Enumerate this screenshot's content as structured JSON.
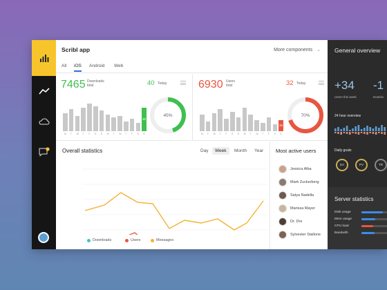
{
  "app": {
    "title": "Scribl app",
    "more_label": "More components"
  },
  "tabs": [
    {
      "label": "All"
    },
    {
      "label": "iOS"
    },
    {
      "label": "Android"
    },
    {
      "label": "Web"
    }
  ],
  "downloads": {
    "total": "7465",
    "total_label_1": "Downloads",
    "total_label_2": "total",
    "today": "40",
    "today_label": "Today",
    "bar_tag": "40",
    "percent": "45%",
    "percent_value": 0.45,
    "days": [
      "M",
      "T",
      "W",
      "T",
      "F",
      "S",
      "S",
      "M",
      "T",
      "W",
      "T",
      "F",
      "S",
      "S"
    ],
    "color": "#3fbf4f"
  },
  "users": {
    "total": "6930",
    "total_label_1": "Users",
    "total_label_2": "total",
    "today": "32",
    "today_label": "Today",
    "bar_tag": "32",
    "percent": "70%",
    "percent_value": 0.7,
    "days": [
      "M",
      "T",
      "W",
      "T",
      "F",
      "S",
      "S",
      "M",
      "T",
      "W",
      "T",
      "F",
      "S",
      "S"
    ],
    "color": "#e8563f"
  },
  "overall": {
    "title": "Overall statistics",
    "ranges": [
      {
        "label": "Day"
      },
      {
        "label": "Week"
      },
      {
        "label": "Month"
      },
      {
        "label": "Year"
      }
    ],
    "legend": [
      {
        "label": "Downloads",
        "color": "#3cc6c0"
      },
      {
        "label": "Users",
        "color": "#e8563f"
      },
      {
        "label": "Messages",
        "color": "#f2b230"
      }
    ]
  },
  "active_users": {
    "title": "Most active users",
    "users": [
      {
        "name": "Jessica Alba"
      },
      {
        "name": "Mark Zuckerberg"
      },
      {
        "name": "Satya Nadella"
      },
      {
        "name": "Marissa Mayer"
      },
      {
        "name": "Dr. Dre"
      },
      {
        "name": "Sylvester Stallone"
      }
    ]
  },
  "overview": {
    "title": "General overview",
    "users_week": "+34",
    "users_week_label": "Users this week",
    "downloads_week": "-1",
    "downloads_week_label": "Downlo",
    "hour_title": "24 hour overview",
    "goals_title": "Daily goals",
    "goals": [
      "DA",
      "PV",
      "TR"
    ]
  },
  "server": {
    "title": "Server statistics",
    "rows": [
      {
        "label": "Disk usage",
        "value": 0.85,
        "color": "#3a8ee6"
      },
      {
        "label": "Mem usage",
        "value": 0.55,
        "color": "#3a8ee6"
      },
      {
        "label": "CPU load",
        "value": 0.45,
        "color": "#e8563f"
      },
      {
        "label": "Bandwith",
        "value": 0.5,
        "color": "#3a8ee6"
      }
    ]
  }
}
